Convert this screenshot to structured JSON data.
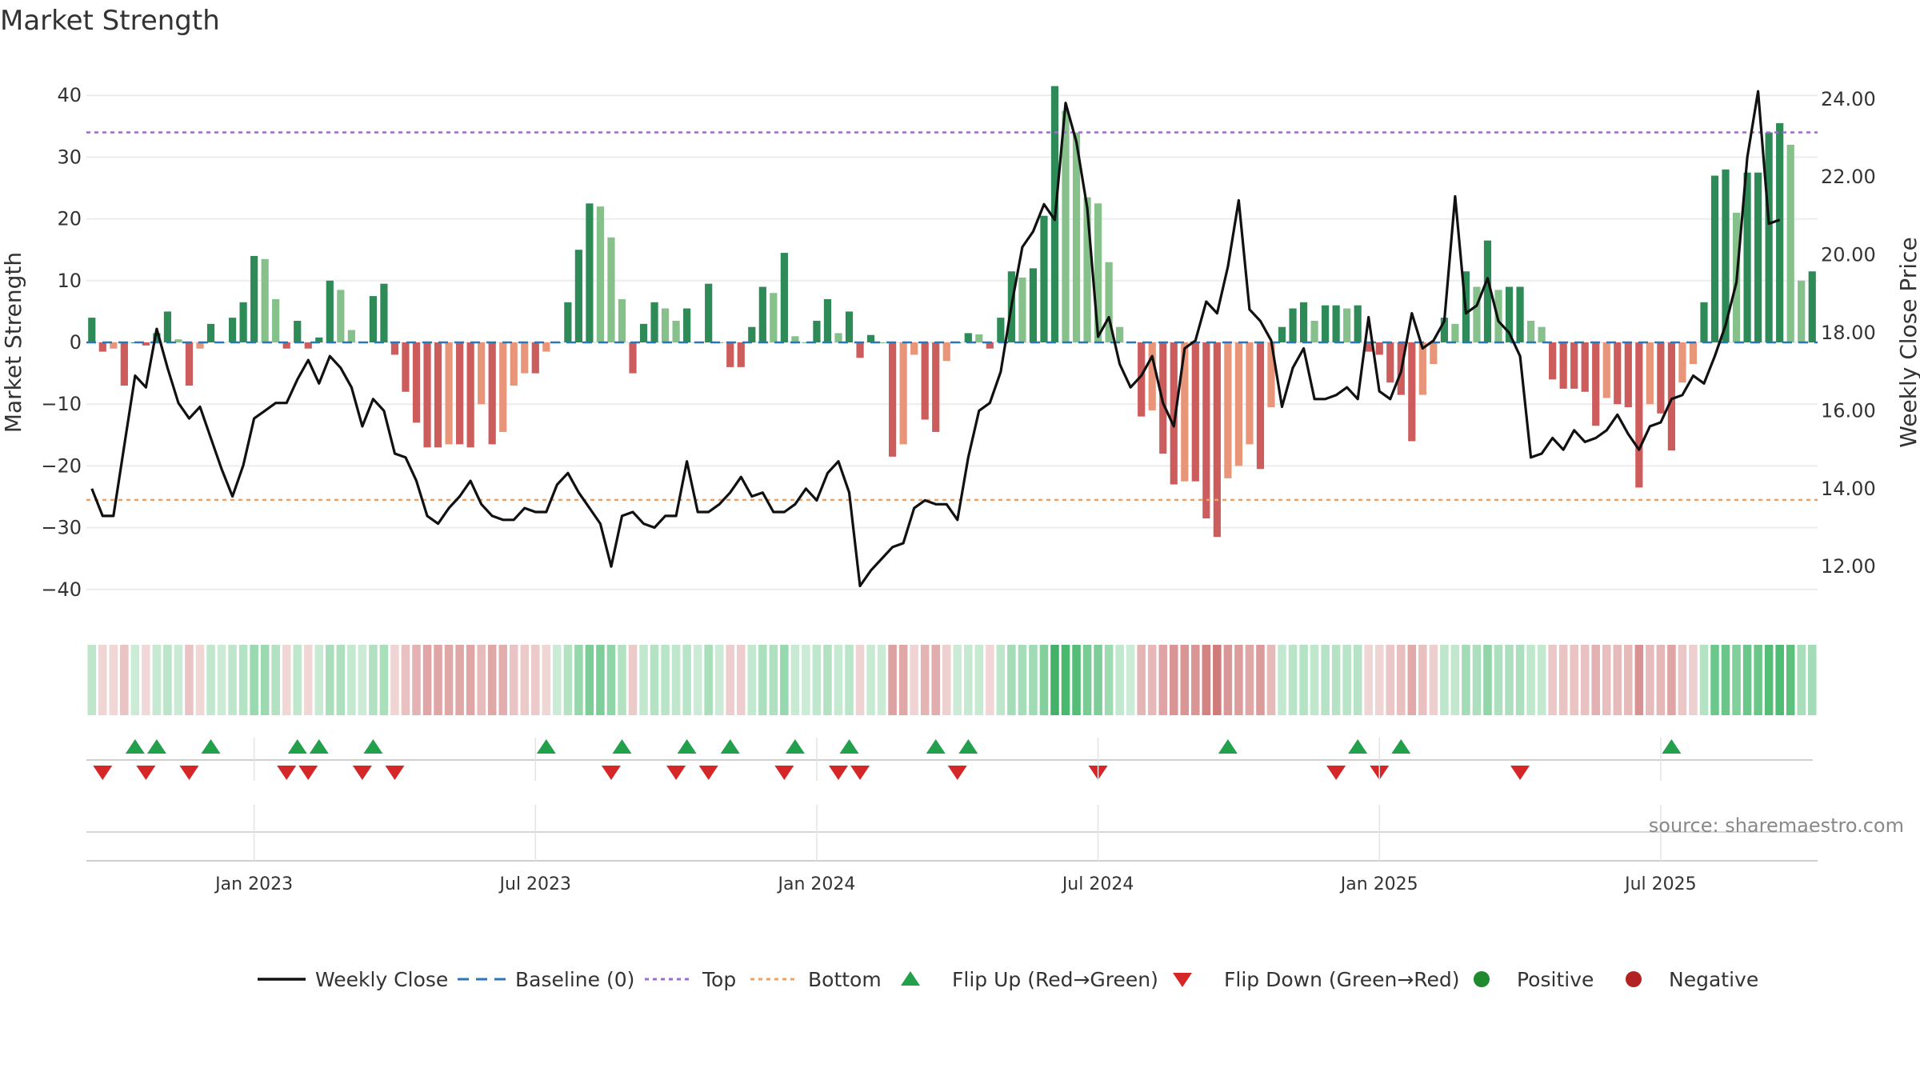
{
  "chart_data": {
    "type": "bar+line",
    "title": "Market Strength",
    "ylabel_left": "Market Strength",
    "ylabel_right": "Weekly Close Price",
    "source": "source: sharemaestro.com",
    "y_left_ticks": [
      "40",
      "30",
      "20",
      "10",
      "0",
      "−10",
      "−20",
      "−30",
      "−40"
    ],
    "y_left_tick_values": [
      40,
      30,
      20,
      10,
      0,
      -10,
      -20,
      -30,
      -40
    ],
    "y_right_ticks": [
      "24.00",
      "22.00",
      "20.00",
      "18.00",
      "16.00",
      "14.00",
      "12.00"
    ],
    "y_right_tick_values": [
      24,
      22,
      20,
      18,
      16,
      14,
      12
    ],
    "ylim_left": [
      -45,
      42
    ],
    "ylim_right": [
      11.4,
      24.5
    ],
    "x_ticks": [
      "Jan 2023",
      "Jul 2023",
      "Jan 2024",
      "Jul 2024",
      "Jan 2025",
      "Jul 2025"
    ],
    "x_tick_weeks": [
      15,
      41,
      67,
      93,
      119,
      145
    ],
    "top_line": 34,
    "bottom_line": -25.5,
    "grid": true,
    "strength_values": [
      4,
      -1.5,
      -1,
      -7,
      0,
      -0.5,
      1.5,
      5,
      0.5,
      -7,
      -1,
      3,
      0,
      4,
      6.5,
      14,
      13.5,
      7,
      -1,
      3.5,
      -1,
      0.8,
      10,
      8.5,
      2,
      0,
      7.5,
      9.5,
      -2,
      -8,
      -13,
      -17,
      -17,
      -16.5,
      -16.5,
      -17,
      -10,
      -16.5,
      -14.5,
      -7,
      -5,
      -5,
      -1.5,
      0,
      6.5,
      15,
      22.5,
      22,
      17,
      7,
      -5,
      3,
      6.5,
      5.5,
      3.5,
      5.5,
      0,
      9.5,
      0,
      -4,
      -4,
      2.5,
      9,
      8,
      14.5,
      1,
      0,
      3.5,
      7,
      1.5,
      5,
      -2.5,
      1.2,
      0,
      -18.5,
      -16.5,
      -2,
      -12.5,
      -14.5,
      -3,
      0,
      1.5,
      1.3,
      -1,
      4,
      11.5,
      10.5,
      12,
      20.5,
      41.5,
      37.5,
      34,
      23.5,
      22.5,
      13,
      2.5,
      0,
      -12,
      -11,
      -18,
      -23,
      -22.5,
      -22.5,
      -28.5,
      -31.5,
      -22,
      -20,
      -16.5,
      -20.5,
      -10.5,
      2.5,
      5.5,
      6.5,
      3.5,
      6,
      6,
      5.5,
      6,
      -1.5,
      -2,
      -6.5,
      -8.5,
      -16,
      -8.5,
      -3.5,
      4,
      3,
      11.5,
      9,
      16.5,
      8.5,
      9,
      9,
      3.5,
      2.5,
      -6,
      -7.5,
      -7.5,
      -8,
      -13.5,
      -9,
      -10,
      -10.5,
      -23.5,
      -10,
      -11.5,
      -17.5,
      -6.5,
      -3.5,
      6.5,
      27,
      28,
      21,
      27.5,
      27.5,
      34,
      35.5,
      32,
      10,
      11.5
    ],
    "weekly_close": [
      14.0,
      13.3,
      13.3,
      15.1,
      16.9,
      16.6,
      18.1,
      17.1,
      16.2,
      15.8,
      16.1,
      15.3,
      14.5,
      13.8,
      14.6,
      15.8,
      16.0,
      16.2,
      16.2,
      16.8,
      17.3,
      16.7,
      17.4,
      17.1,
      16.6,
      15.6,
      16.3,
      16.0,
      14.9,
      14.8,
      14.2,
      13.3,
      13.1,
      13.5,
      13.8,
      14.2,
      13.6,
      13.3,
      13.2,
      13.2,
      13.5,
      13.4,
      13.4,
      14.1,
      14.4,
      13.9,
      13.5,
      13.1,
      12.0,
      13.3,
      13.4,
      13.1,
      13.0,
      13.3,
      13.3,
      14.7,
      13.4,
      13.4,
      13.6,
      13.9,
      14.3,
      13.8,
      13.9,
      13.4,
      13.4,
      13.6,
      14.0,
      13.7,
      14.4,
      14.7,
      13.9,
      11.5,
      11.9,
      12.2,
      12.5,
      12.6,
      13.5,
      13.7,
      13.6,
      13.6,
      13.2,
      14.8,
      16.0,
      16.2,
      17.0,
      18.7,
      20.2,
      20.6,
      21.3,
      20.9,
      23.9,
      22.9,
      21.2,
      17.9,
      18.4,
      17.2,
      16.6,
      16.9,
      17.4,
      16.2,
      15.6,
      17.6,
      17.8,
      18.8,
      18.5,
      19.7,
      21.4,
      18.6,
      18.3,
      17.8,
      16.1,
      17.1,
      17.6,
      16.3,
      16.3,
      16.4,
      16.6,
      16.3,
      18.4,
      16.5,
      16.3,
      17.0,
      18.5,
      17.6,
      17.8,
      18.3,
      21.5,
      18.5,
      18.7,
      19.4,
      18.3,
      18.0,
      17.4,
      14.8,
      14.9,
      15.3,
      15.0,
      15.5,
      15.2,
      15.3,
      15.5,
      15.9,
      15.4,
      15.0,
      15.6,
      15.7,
      16.3,
      16.4,
      16.9,
      16.7,
      17.4,
      18.2,
      19.3,
      22.5,
      24.2,
      20.8,
      20.9
    ],
    "flip_up_weeks": [
      4,
      6,
      11,
      19,
      21,
      26,
      42,
      49,
      55,
      59,
      65,
      70,
      78,
      81,
      105,
      117,
      121,
      146
    ],
    "flip_down_weeks": [
      1,
      5,
      9,
      18,
      20,
      25,
      28,
      48,
      54,
      57,
      64,
      69,
      71,
      80,
      93,
      115,
      119,
      132
    ],
    "legend": [
      {
        "label": "Weekly Close",
        "type": "line",
        "color": "#111111"
      },
      {
        "label": "Baseline (0)",
        "type": "dash",
        "color": "#2e75b6"
      },
      {
        "label": "Top",
        "type": "dot",
        "color": "#9b6fc7"
      },
      {
        "label": "Bottom",
        "type": "dot",
        "color": "#e8a36a"
      },
      {
        "label": "Flip Up (Red→Green)",
        "type": "tri-up",
        "color": "#22a04b"
      },
      {
        "label": "Flip Down (Green→Red)",
        "type": "tri-down",
        "color": "#d62728"
      },
      {
        "label": "Positive",
        "type": "circle",
        "color": "#1f8a2e"
      },
      {
        "label": "Negative",
        "type": "circle",
        "color": "#b22222"
      }
    ]
  }
}
